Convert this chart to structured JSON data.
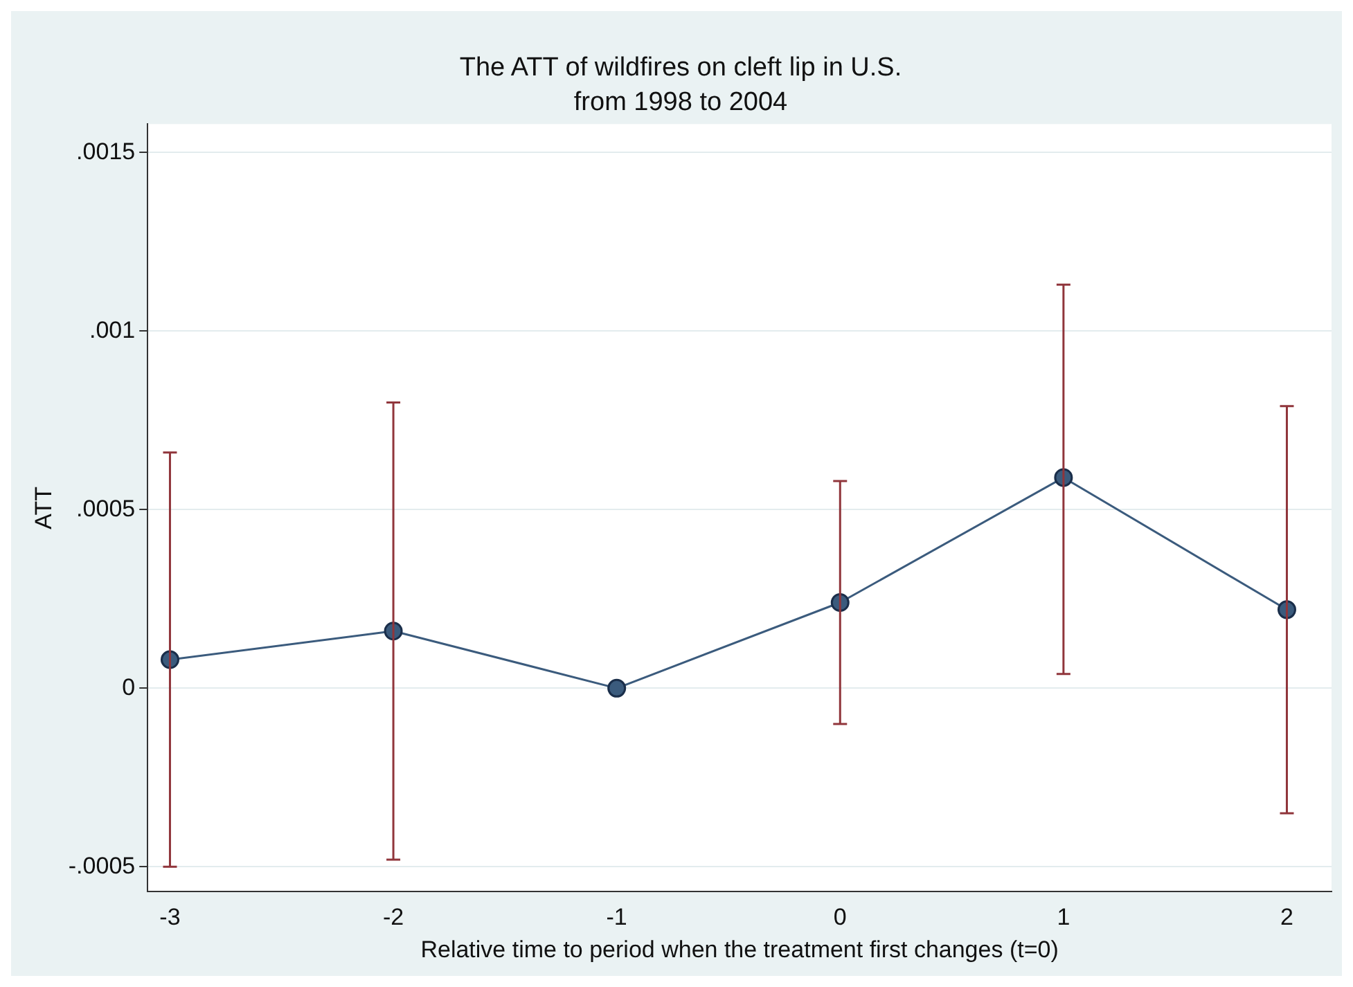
{
  "chart_data": {
    "type": "line",
    "title": "The ATT of wildfires on cleft lip in U.S.",
    "subtitle": "from 1998 to 2004",
    "xlabel": "Relative time to period when the treatment first changes (t=0)",
    "ylabel": "ATT",
    "x": [
      -3,
      -2,
      -1,
      0,
      1,
      2
    ],
    "series": [
      {
        "color": "#3b5b7d",
        "values": [
          8e-05,
          0.00016,
          0,
          0.00024,
          0.00059,
          0.00022
        ],
        "errors": [
          [
            -0.0005,
            0.00066
          ],
          [
            -0.00048,
            0.0008
          ],
          null,
          [
            -0.0001,
            0.00058
          ],
          [
            4e-05,
            0.00113
          ],
          [
            -0.00035,
            0.00079
          ]
        ]
      }
    ],
    "xlim": [
      -3.1,
      2.2
    ],
    "xticks": [
      -3,
      -2,
      -1,
      0,
      1,
      2
    ],
    "ylim": [
      -0.00057,
      0.00158
    ],
    "yticks": [
      {
        "value": -0.0005,
        "label": "-.0005"
      },
      {
        "value": 0,
        "label": "0"
      },
      {
        "value": 0.0005,
        "label": ".0005"
      },
      {
        "value": 0.001,
        "label": ".001"
      },
      {
        "value": 0.0015,
        "label": ".0015"
      }
    ],
    "grid": "y",
    "legend": false,
    "marker": "circle",
    "line_style": "solid"
  }
}
